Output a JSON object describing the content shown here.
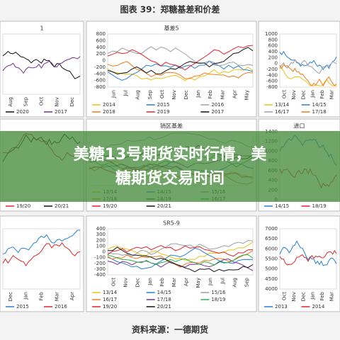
{
  "header": {
    "title": "图表 39：郑糖基差和价差"
  },
  "panels": [
    {
      "title": "1",
      "yticks": [],
      "xlabels": [
        "Aug",
        "Sep",
        "Oct",
        "Nov",
        "Dec"
      ],
      "legend": [
        {
          "name": "2020",
          "color": "#111111"
        },
        {
          "name": "2017",
          "color": "#7a2f8f"
        }
      ]
    },
    {
      "title": "基差5",
      "yticks": [
        800,
        600,
        400,
        200,
        0,
        -200,
        -400,
        -600,
        -800
      ],
      "xlabels": [
        "Jun",
        "Jul",
        "Aug",
        "Sep",
        "Oct",
        "Nov",
        "Dec",
        "Jan",
        "Feb",
        "Mar",
        "Apr",
        "May"
      ],
      "legend": [
        {
          "name": "2014",
          "color": "#e8c21b"
        },
        {
          "name": "2015",
          "color": "#2a7fd4"
        },
        {
          "name": "2016",
          "color": "#9aa0a6"
        },
        {
          "name": "2018",
          "color": "#f07b1a"
        },
        {
          "name": "2019",
          "color": "#e0262a"
        },
        {
          "name": "2017",
          "color": "#111111"
        }
      ]
    },
    {
      "title": "",
      "yticks": [
        1000,
        800,
        600,
        400,
        200,
        0,
        -200,
        -400,
        -600,
        -800
      ],
      "xlabels": [
        "Oct",
        "Nov",
        "Dec",
        "Jan",
        "Feb",
        "Mar"
      ],
      "legend": [
        {
          "name": "13/14",
          "color": "#e8c21b"
        },
        {
          "name": "14/15",
          "color": "#2a7fd4"
        },
        {
          "name": "16/17",
          "color": "#9aa0a6"
        },
        {
          "name": "17/18",
          "color": "#f07b1a"
        }
      ]
    },
    {
      "title": "",
      "yticks": [],
      "xlabels": [],
      "legend": [
        {
          "name": "19/20",
          "color": "#e0262a"
        },
        {
          "name": "20/21",
          "color": "#111111"
        }
      ]
    },
    {
      "title": "销区基差",
      "yticks": [],
      "xlabels": [],
      "legend": [
        {
          "name": "13/14",
          "color": "#e8c21b"
        },
        {
          "name": "14/15",
          "color": "#2a7fd4"
        },
        {
          "name": "15/16",
          "color": "#9aa0a6"
        },
        {
          "name": "17/18",
          "color": "#f07b1a"
        },
        {
          "name": "18/19",
          "color": "#7a2f8f"
        },
        {
          "name": "16/17",
          "color": "#2bb34a"
        },
        {
          "name": "19/20",
          "color": "#e0262a"
        },
        {
          "name": "20/21",
          "color": "#111111"
        }
      ]
    },
    {
      "title": "进口",
      "yticks": [
        1400,
        1200,
        1000,
        800,
        600,
        400,
        200,
        0
      ],
      "xlabels": [],
      "legend": [
        {
          "name": "14/15",
          "color": "#2a7fd4"
        },
        {
          "name": "18/19",
          "color": "#e0262a"
        }
      ]
    },
    {
      "title": "",
      "yticks": [],
      "xlabels": [
        "Dec",
        "Jan",
        "Feb",
        "Mar",
        "Apr"
      ],
      "legend": [
        {
          "name": "2015",
          "color": "#2a7fd4"
        },
        {
          "name": "2016",
          "color": "#e0262a"
        }
      ]
    },
    {
      "title": "SR5-9",
      "yticks": [
        400,
        300,
        200,
        100,
        0,
        -100,
        -200,
        -300,
        -400
      ],
      "xlabels": [
        "Oct",
        "Nov",
        "Dec",
        "Jan",
        "Feb",
        "Mar",
        "Apr",
        "May",
        "Jun",
        "Jul",
        "Aug",
        "Sep"
      ],
      "legend": [
        {
          "name": "13/14",
          "color": "#e8c21b"
        },
        {
          "name": "14/15",
          "color": "#2a7fd4"
        },
        {
          "name": "15/16",
          "color": "#9aa0a6"
        },
        {
          "name": "16/17",
          "color": "#f07b1a"
        },
        {
          "name": "17/18",
          "color": "#7a2f8f"
        },
        {
          "name": "18/19",
          "color": "#2bb34a"
        },
        {
          "name": "19/20",
          "color": "#e0262a"
        },
        {
          "name": "20/21",
          "color": "#111111"
        }
      ]
    },
    {
      "title": "",
      "yticks": [
        7000,
        6500,
        6000,
        5500,
        5000,
        4500,
        4000
      ],
      "xlabels": [
        "Oct",
        "Nov",
        "Dec",
        "Jan",
        "Feb",
        "Mar"
      ],
      "legend": [
        {
          "name": "2013",
          "color": "#2a7fd4"
        },
        {
          "name": "2014",
          "color": "#e0262a"
        }
      ]
    }
  ],
  "banner": {
    "lines": [
      "美糖13号期货实时行情，美",
      "糖期货交易时间"
    ]
  },
  "footer": {
    "source": "资料来源：一德期货"
  }
}
